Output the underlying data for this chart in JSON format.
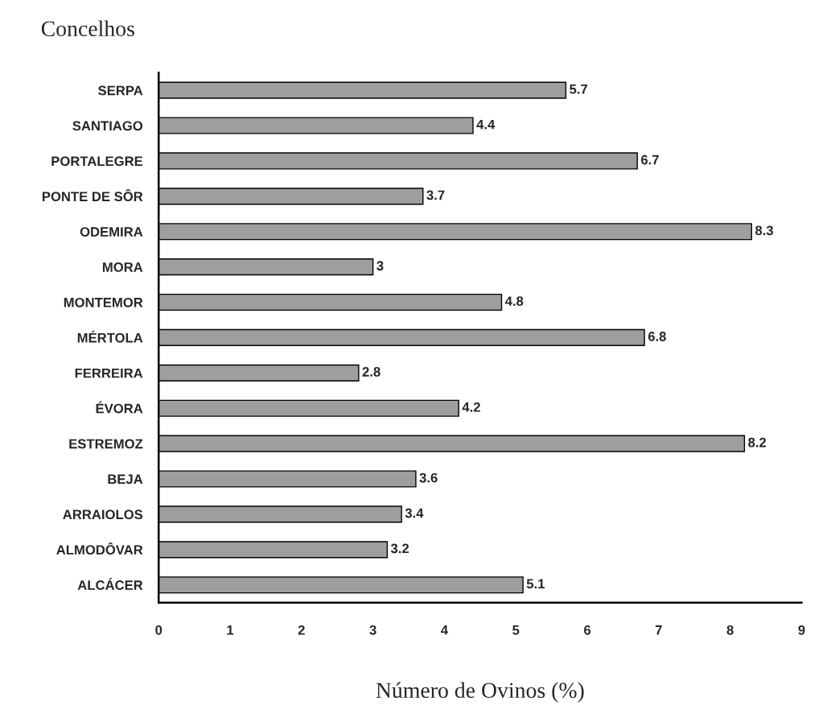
{
  "chart_data": {
    "type": "bar",
    "orientation": "horizontal",
    "ylabel": "Concelhos",
    "xlabel": "Número de Ovinos (%)",
    "categories": [
      "SERPA",
      "SANTIAGO",
      "PORTALEGRE",
      "PONTE DE SÔR",
      "ODEMIRA",
      "MORA",
      "MONTEMOR",
      "MÉRTOLA",
      "FERREIRA",
      "ÉVORA",
      "ESTREMOZ",
      "BEJA",
      "ARRAIOLOS",
      "ALMODÔVAR",
      "ALCÁCER"
    ],
    "values": [
      5.7,
      4.4,
      6.7,
      3.7,
      8.3,
      3,
      4.8,
      6.8,
      2.8,
      4.2,
      8.2,
      3.6,
      3.4,
      3.2,
      5.1
    ],
    "color": "#9e9e9e",
    "data_labels": true,
    "grid": false,
    "xlim": [
      0,
      9
    ],
    "xticks": [
      0,
      1,
      2,
      3,
      4,
      5,
      6,
      7,
      8,
      9
    ]
  }
}
